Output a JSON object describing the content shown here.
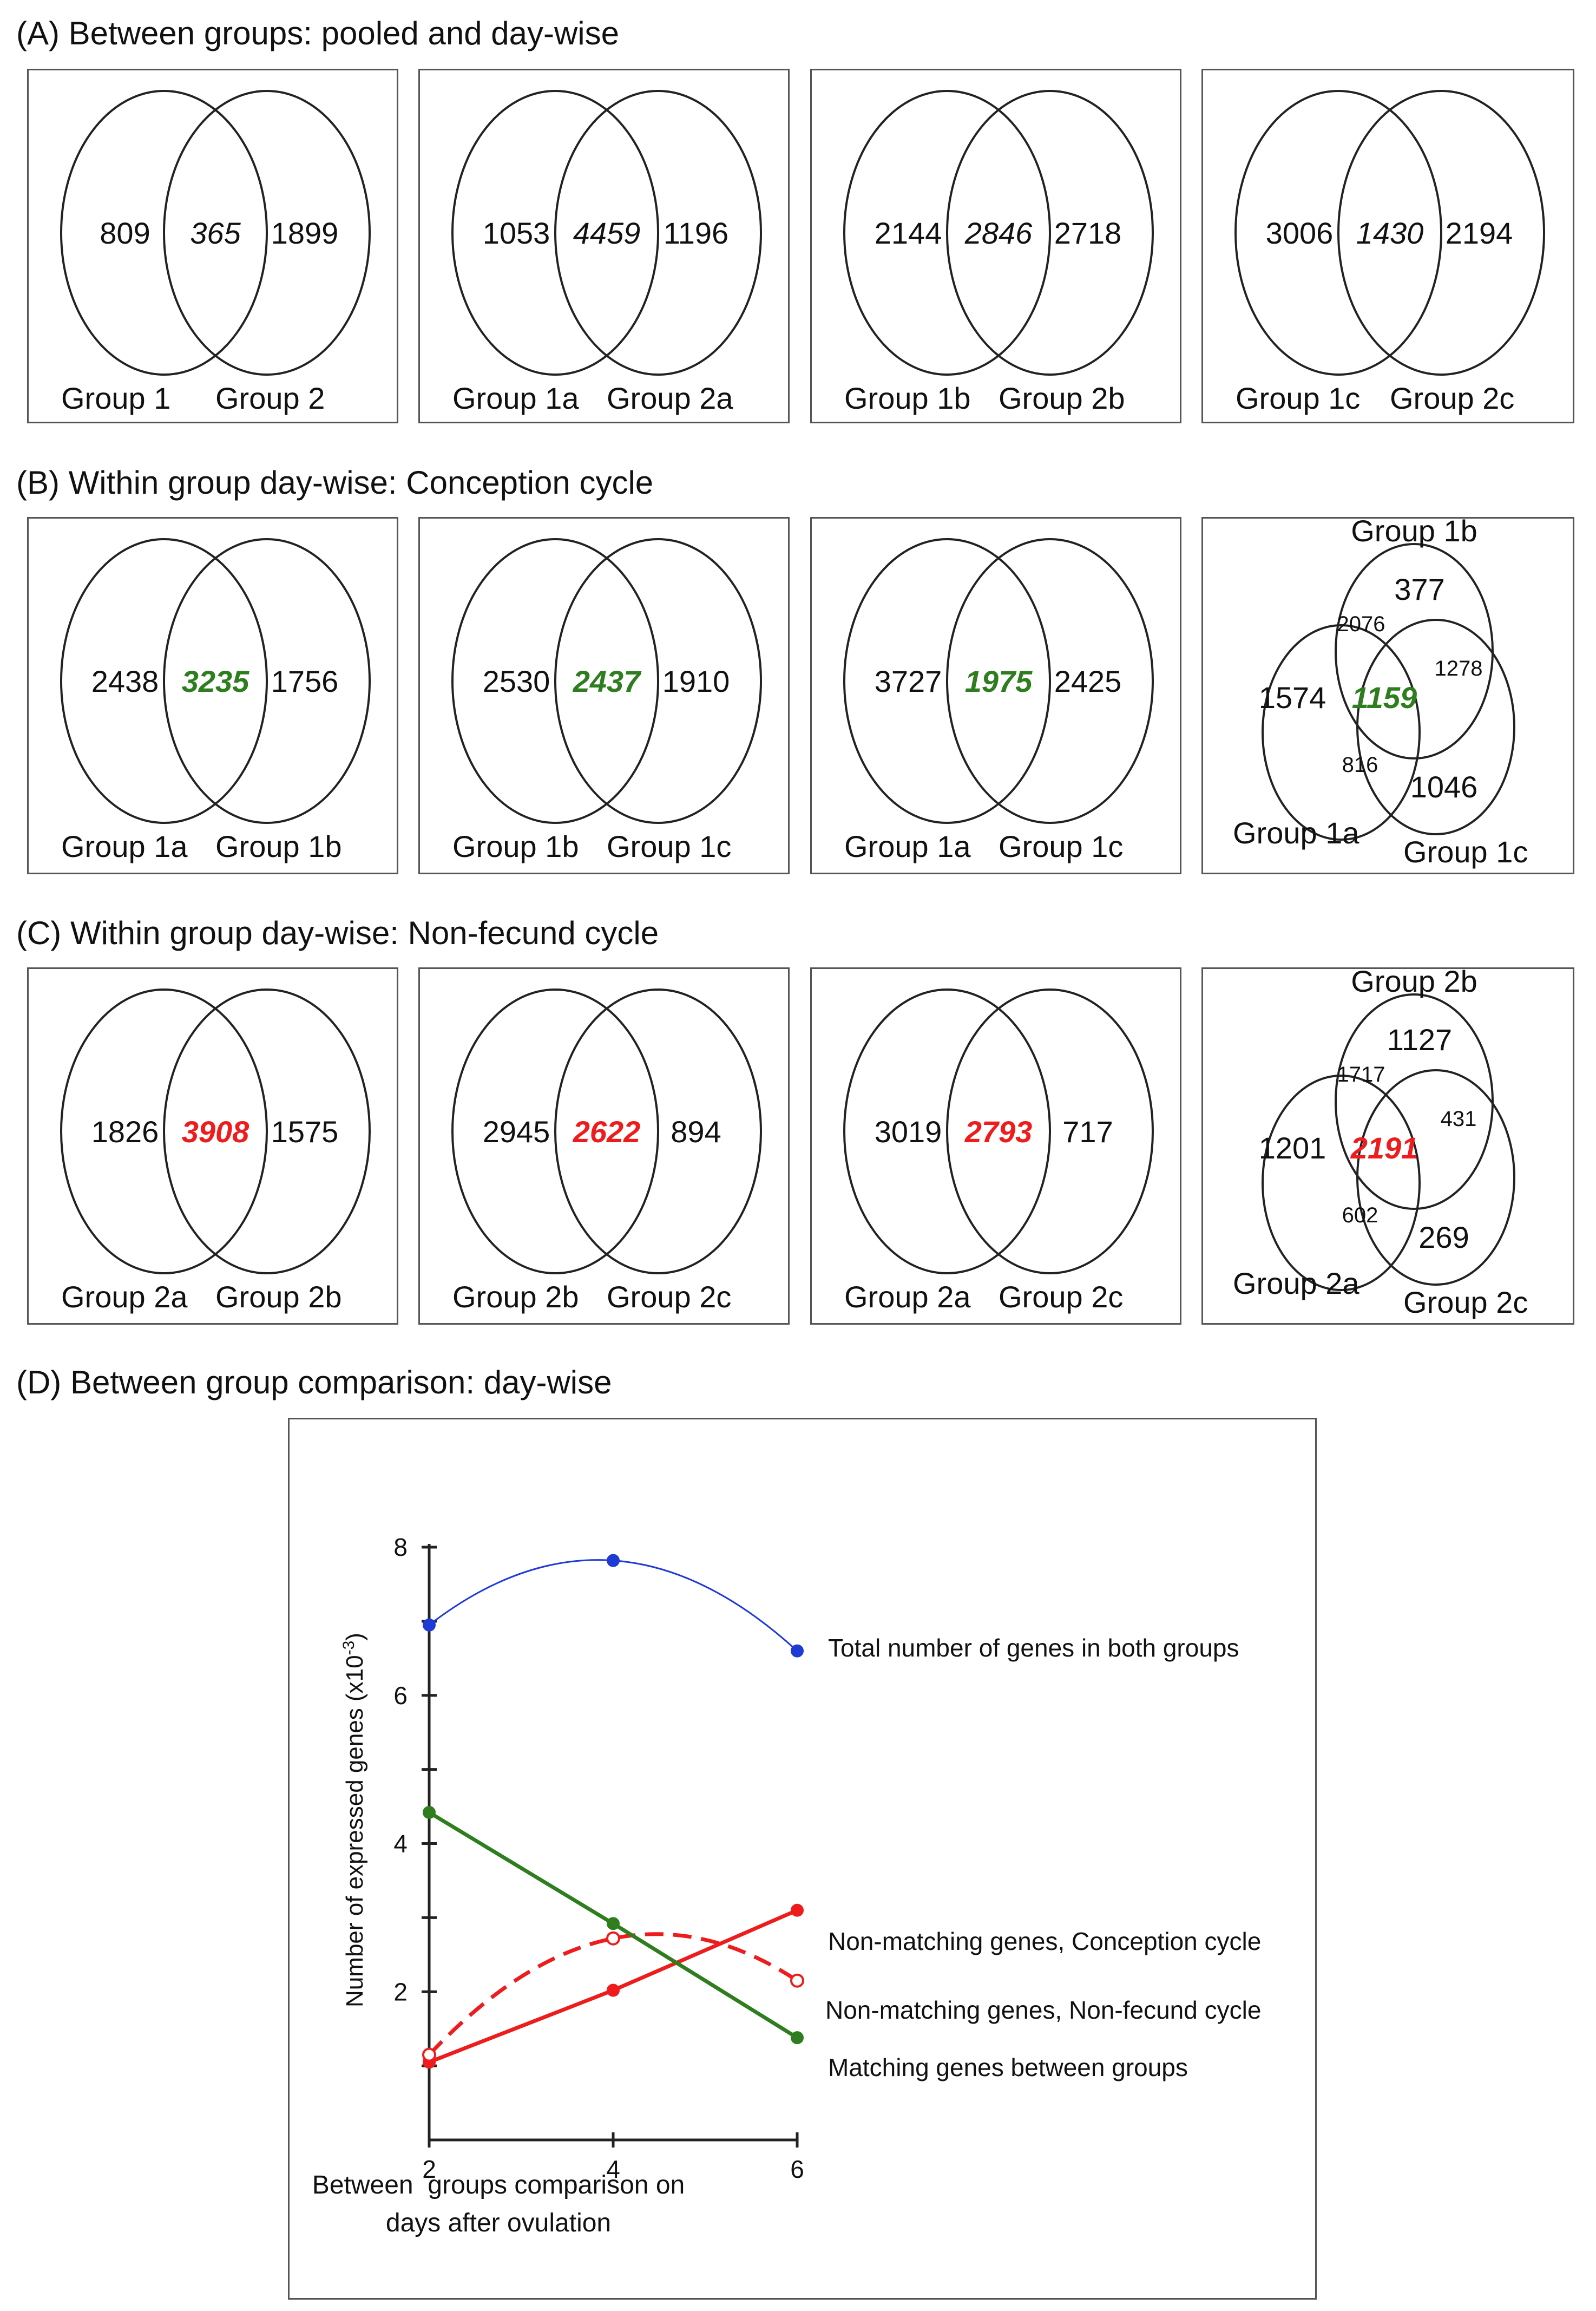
{
  "colors": {
    "green": "#2e7d1e",
    "red": "#ee1c1c",
    "blue": "#1f3bd6",
    "black": "#111111"
  },
  "headings": {
    "a": "(A) Between groups: pooled and day-wise",
    "b": "(B) Within group day-wise: Conception cycle",
    "c": "(C) Within group day-wise: Non-fecund cycle",
    "d": "(D) Between group comparison: day-wise"
  },
  "row_a": [
    {
      "left": "809",
      "mid": "365",
      "right": "1899",
      "label_left": "Group 1",
      "label_right": "Group 2"
    },
    {
      "left": "1053",
      "mid": "4459",
      "right": "1196",
      "label_left": "Group 1a",
      "label_right": "Group 2a"
    },
    {
      "left": "2144",
      "mid": "2846",
      "right": "2718",
      "label_left": "Group 1b",
      "label_right": "Group 2b"
    },
    {
      "left": "3006",
      "mid": "1430",
      "right": "2194",
      "label_left": "Group 1c",
      "label_right": "Group 2c"
    }
  ],
  "row_b": [
    {
      "left": "2438",
      "mid": "3235",
      "right": "1756",
      "label_left": "Group 1a",
      "label_right": "Group 1b"
    },
    {
      "left": "2530",
      "mid": "2437",
      "right": "1910",
      "label_left": "Group 1b",
      "label_right": "Group 1c"
    },
    {
      "left": "3727",
      "mid": "1975",
      "right": "2425",
      "label_left": "Group 1a",
      "label_right": "Group 1c"
    }
  ],
  "triple_b": {
    "top_label": "Group 1b",
    "left_label": "Group 1a",
    "right_label": "Group 1c",
    "only_top": "377",
    "top_left": "2076",
    "top_right": "1278",
    "only_left": "1574",
    "center": "1159",
    "left_right": "816",
    "only_right": "1046"
  },
  "row_c": [
    {
      "left": "1826",
      "mid": "3908",
      "right": "1575",
      "label_left": "Group 2a",
      "label_right": "Group 2b"
    },
    {
      "left": "2945",
      "mid": "2622",
      "right": "894",
      "label_left": "Group 2b",
      "label_right": "Group 2c"
    },
    {
      "left": "3019",
      "mid": "2793",
      "right": "717",
      "label_left": "Group 2a",
      "label_right": "Group 2c"
    }
  ],
  "triple_c": {
    "top_label": "Group 2b",
    "left_label": "Group 2a",
    "right_label": "Group 2c",
    "only_top": "1127",
    "top_left": "1717",
    "top_right": "431",
    "only_left": "1201",
    "center": "2191",
    "left_right": "602",
    "only_right": "269"
  },
  "chart_data": {
    "type": "line",
    "xlabel_lines": [
      "Between  groups comparison on",
      "days after ovulation"
    ],
    "ylabel": "Number of expressed genes (x10",
    "ylabel_sup": "-3",
    "x_ticks": [
      "2",
      "4",
      "6"
    ],
    "y_ticks": [
      "2",
      "4",
      "6",
      "8"
    ],
    "xlim": [
      2,
      6
    ],
    "ylim": [
      0,
      8
    ],
    "series": [
      {
        "name": "Total number of genes in both groups",
        "x": [
          2,
          4,
          6
        ],
        "y": [
          6.95,
          7.82,
          6.6
        ],
        "color": "#1f3bd6",
        "style": "curve",
        "marker": "filled"
      },
      {
        "name": "Non-matching genes, Conception cycle",
        "x": [
          2,
          4,
          6
        ],
        "y": [
          1.05,
          2.02,
          3.1
        ],
        "color": "#ee1c1c",
        "style": "solid",
        "marker": "filled"
      },
      {
        "name": "Non-matching genes, Non-fecund cycle",
        "x": [
          2,
          4,
          6
        ],
        "y": [
          1.15,
          2.72,
          2.15
        ],
        "color": "#ee1c1c",
        "style": "dashed-curve",
        "marker": "open"
      },
      {
        "name": "Matching genes between groups",
        "x": [
          2,
          4,
          6
        ],
        "y": [
          4.42,
          2.92,
          1.38
        ],
        "color": "#2e7d1e",
        "style": "solid",
        "marker": "filled"
      }
    ]
  }
}
